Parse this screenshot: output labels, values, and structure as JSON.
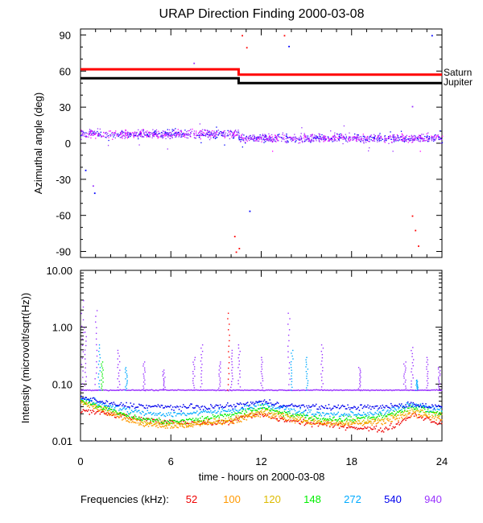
{
  "chart_data": [
    {
      "type": "scatter",
      "title": "URAP Direction Finding  2000-03-08",
      "ylabel": "Azimuthal angle (deg)",
      "xlim": [
        0,
        24
      ],
      "ylim": [
        -95,
        95
      ],
      "yticks": [
        90,
        60,
        30,
        0,
        -30,
        -60,
        -90
      ],
      "ytick_labels": [
        "90",
        "60",
        "30",
        "0",
        "-30",
        "-60",
        "-90"
      ],
      "reference_lines": [
        {
          "name": "Saturn",
          "color": "#ff0000",
          "x": [
            0,
            10.5,
            10.5,
            24
          ],
          "y": [
            61.5,
            61.5,
            57,
            57
          ]
        },
        {
          "name": "Jupiter",
          "color": "#000000",
          "x": [
            0,
            10.5,
            10.5,
            24
          ],
          "y": [
            54,
            54,
            50,
            50
          ]
        }
      ],
      "scatter_band": {
        "color": "#9933ff",
        "center": 8,
        "spread": 5,
        "x_range": [
          0,
          24
        ]
      },
      "outliers": [
        {
          "x": 10.3,
          "y": -90,
          "color": "#ff0000"
        },
        {
          "x": 10.5,
          "y": -87,
          "color": "#ff0000"
        },
        {
          "x": 10.2,
          "y": -77,
          "color": "#ff0000"
        },
        {
          "x": 10.7,
          "y": 90,
          "color": "#ff0000"
        },
        {
          "x": 11.0,
          "y": 80,
          "color": "#ff0000"
        },
        {
          "x": 22.0,
          "y": -60,
          "color": "#ff0000"
        },
        {
          "x": 22.2,
          "y": -72,
          "color": "#ff0000"
        },
        {
          "x": 22.4,
          "y": -85,
          "color": "#ff0000"
        },
        {
          "x": 0.8,
          "y": -35,
          "color": "#9933ff"
        },
        {
          "x": 0.9,
          "y": -41,
          "color": "#0000ff"
        },
        {
          "x": 11.2,
          "y": -56,
          "color": "#0000ff"
        },
        {
          "x": 13.8,
          "y": 81,
          "color": "#0000ff"
        },
        {
          "x": 13.5,
          "y": 90,
          "color": "#ff0000"
        },
        {
          "x": 7.5,
          "y": 67,
          "color": "#9933ff"
        },
        {
          "x": 0.3,
          "y": -22,
          "color": "#0000ff"
        },
        {
          "x": 23.3,
          "y": 90,
          "color": "#0000ff"
        },
        {
          "x": 22.0,
          "y": 31,
          "color": "#9933ff"
        }
      ]
    },
    {
      "type": "scatter",
      "ylabel": "Intensity (microvolt/sqrt(Hz))",
      "xlabel": "time - hours on 2000-03-08",
      "xlim": [
        0,
        24
      ],
      "ylim": [
        0.01,
        10
      ],
      "yscale": "log",
      "yticks": [
        10,
        1,
        0.1,
        0.01
      ],
      "ytick_labels": [
        "10.00",
        "1.00",
        "0.10",
        "0.01"
      ],
      "xticks": [
        0,
        6,
        12,
        18,
        24
      ],
      "xtick_labels": [
        "0",
        "6",
        "12",
        "18",
        "24"
      ],
      "series": [
        {
          "name": "52",
          "color": "#ee0000",
          "baseline": [
            [
              0,
              0.035
            ],
            [
              2,
              0.03
            ],
            [
              4,
              0.024
            ],
            [
              6,
              0.022
            ],
            [
              9,
              0.021
            ],
            [
              10,
              0.023
            ],
            [
              11,
              0.028
            ],
            [
              12,
              0.03
            ],
            [
              13,
              0.025
            ],
            [
              15,
              0.021
            ],
            [
              18,
              0.018
            ],
            [
              20,
              0.016
            ],
            [
              21,
              0.02
            ],
            [
              22,
              0.03
            ],
            [
              23,
              0.025
            ],
            [
              24,
              0.02
            ]
          ]
        },
        {
          "name": "100",
          "color": "#ff9900",
          "baseline": [
            [
              0,
              0.05
            ],
            [
              2,
              0.03
            ],
            [
              4,
              0.02
            ],
            [
              6,
              0.018
            ],
            [
              8,
              0.02
            ],
            [
              10,
              0.022
            ],
            [
              12,
              0.03
            ],
            [
              14,
              0.025
            ],
            [
              16,
              0.02
            ],
            [
              18,
              0.02
            ],
            [
              20,
              0.022
            ],
            [
              22,
              0.03
            ],
            [
              24,
              0.025
            ]
          ]
        },
        {
          "name": "120",
          "color": "#ddbb00",
          "baseline": [
            [
              0,
              0.05
            ],
            [
              2,
              0.035
            ],
            [
              4,
              0.022
            ],
            [
              6,
              0.02
            ],
            [
              8,
              0.022
            ],
            [
              10,
              0.025
            ],
            [
              12,
              0.035
            ],
            [
              14,
              0.028
            ],
            [
              16,
              0.022
            ],
            [
              18,
              0.022
            ],
            [
              20,
              0.025
            ],
            [
              22,
              0.035
            ],
            [
              24,
              0.03
            ]
          ]
        },
        {
          "name": "148",
          "color": "#00ee00",
          "baseline": [
            [
              0,
              0.055
            ],
            [
              2,
              0.035
            ],
            [
              4,
              0.025
            ],
            [
              6,
              0.022
            ],
            [
              8,
              0.025
            ],
            [
              10,
              0.03
            ],
            [
              12,
              0.04
            ],
            [
              14,
              0.03
            ],
            [
              16,
              0.025
            ],
            [
              18,
              0.025
            ],
            [
              20,
              0.028
            ],
            [
              22,
              0.04
            ],
            [
              24,
              0.03
            ]
          ]
        },
        {
          "name": "272",
          "color": "#00aaff",
          "baseline": [
            [
              0,
              0.06
            ],
            [
              2,
              0.04
            ],
            [
              4,
              0.032
            ],
            [
              6,
              0.03
            ],
            [
              8,
              0.032
            ],
            [
              10,
              0.035
            ],
            [
              12,
              0.045
            ],
            [
              14,
              0.035
            ],
            [
              16,
              0.03
            ],
            [
              18,
              0.03
            ],
            [
              20,
              0.032
            ],
            [
              22,
              0.045
            ],
            [
              24,
              0.035
            ]
          ]
        },
        {
          "name": "540",
          "color": "#0000ee",
          "baseline": [
            [
              0,
              0.06
            ],
            [
              2,
              0.045
            ],
            [
              4,
              0.042
            ],
            [
              6,
              0.04
            ],
            [
              8,
              0.04
            ],
            [
              10,
              0.042
            ],
            [
              12,
              0.05
            ],
            [
              14,
              0.042
            ],
            [
              16,
              0.04
            ],
            [
              18,
              0.04
            ],
            [
              20,
              0.04
            ],
            [
              22,
              0.045
            ],
            [
              24,
              0.04
            ]
          ]
        },
        {
          "name": "940",
          "color": "#9933ff",
          "baseline": [
            [
              0,
              0.08
            ],
            [
              24,
              0.08
            ]
          ]
        }
      ],
      "spikes": [
        {
          "x": 0.1,
          "peak": 3.0,
          "color": "#9933ff"
        },
        {
          "x": 0.3,
          "peak": 1.0,
          "color": "#9933ff"
        },
        {
          "x": 1.0,
          "peak": 2.0,
          "color": "#9933ff"
        },
        {
          "x": 1.2,
          "peak": 0.5,
          "color": "#00aaff"
        },
        {
          "x": 1.4,
          "peak": 0.25,
          "color": "#00ee00"
        },
        {
          "x": 2.5,
          "peak": 0.4,
          "color": "#9933ff"
        },
        {
          "x": 3.0,
          "peak": 0.2,
          "color": "#00aaff"
        },
        {
          "x": 4.2,
          "peak": 0.25,
          "color": "#9933ff"
        },
        {
          "x": 5.5,
          "peak": 0.18,
          "color": "#9933ff"
        },
        {
          "x": 7.5,
          "peak": 0.3,
          "color": "#9933ff"
        },
        {
          "x": 8.0,
          "peak": 0.5,
          "color": "#9933ff"
        },
        {
          "x": 9.2,
          "peak": 0.25,
          "color": "#9933ff"
        },
        {
          "x": 9.8,
          "peak": 1.8,
          "color": "#ff0000"
        },
        {
          "x": 10.0,
          "peak": 0.4,
          "color": "#9933ff"
        },
        {
          "x": 10.5,
          "peak": 0.5,
          "color": "#9933ff"
        },
        {
          "x": 12.0,
          "peak": 0.3,
          "color": "#9933ff"
        },
        {
          "x": 13.8,
          "peak": 1.8,
          "color": "#9933ff"
        },
        {
          "x": 14.0,
          "peak": 0.4,
          "color": "#00aaff"
        },
        {
          "x": 15.0,
          "peak": 0.3,
          "color": "#00aaff"
        },
        {
          "x": 16.0,
          "peak": 0.5,
          "color": "#9933ff"
        },
        {
          "x": 18.5,
          "peak": 0.2,
          "color": "#9933ff"
        },
        {
          "x": 21.5,
          "peak": 0.25,
          "color": "#9933ff"
        },
        {
          "x": 22.0,
          "peak": 0.45,
          "color": "#9933ff"
        },
        {
          "x": 22.3,
          "peak": 0.12,
          "color": "#00aaff"
        },
        {
          "x": 23.0,
          "peak": 0.3,
          "color": "#9933ff"
        },
        {
          "x": 23.8,
          "peak": 0.2,
          "color": "#9933ff"
        }
      ]
    }
  ],
  "legend": {
    "label": "Frequencies (kHz):",
    "items": [
      {
        "label": "52",
        "color": "#ee0000"
      },
      {
        "label": "100",
        "color": "#ff9900"
      },
      {
        "label": "120",
        "color": "#ddbb00"
      },
      {
        "label": "148",
        "color": "#00ee00"
      },
      {
        "label": "272",
        "color": "#00aaff"
      },
      {
        "label": "540",
        "color": "#0000ee"
      },
      {
        "label": "940",
        "color": "#9933ff"
      }
    ]
  }
}
